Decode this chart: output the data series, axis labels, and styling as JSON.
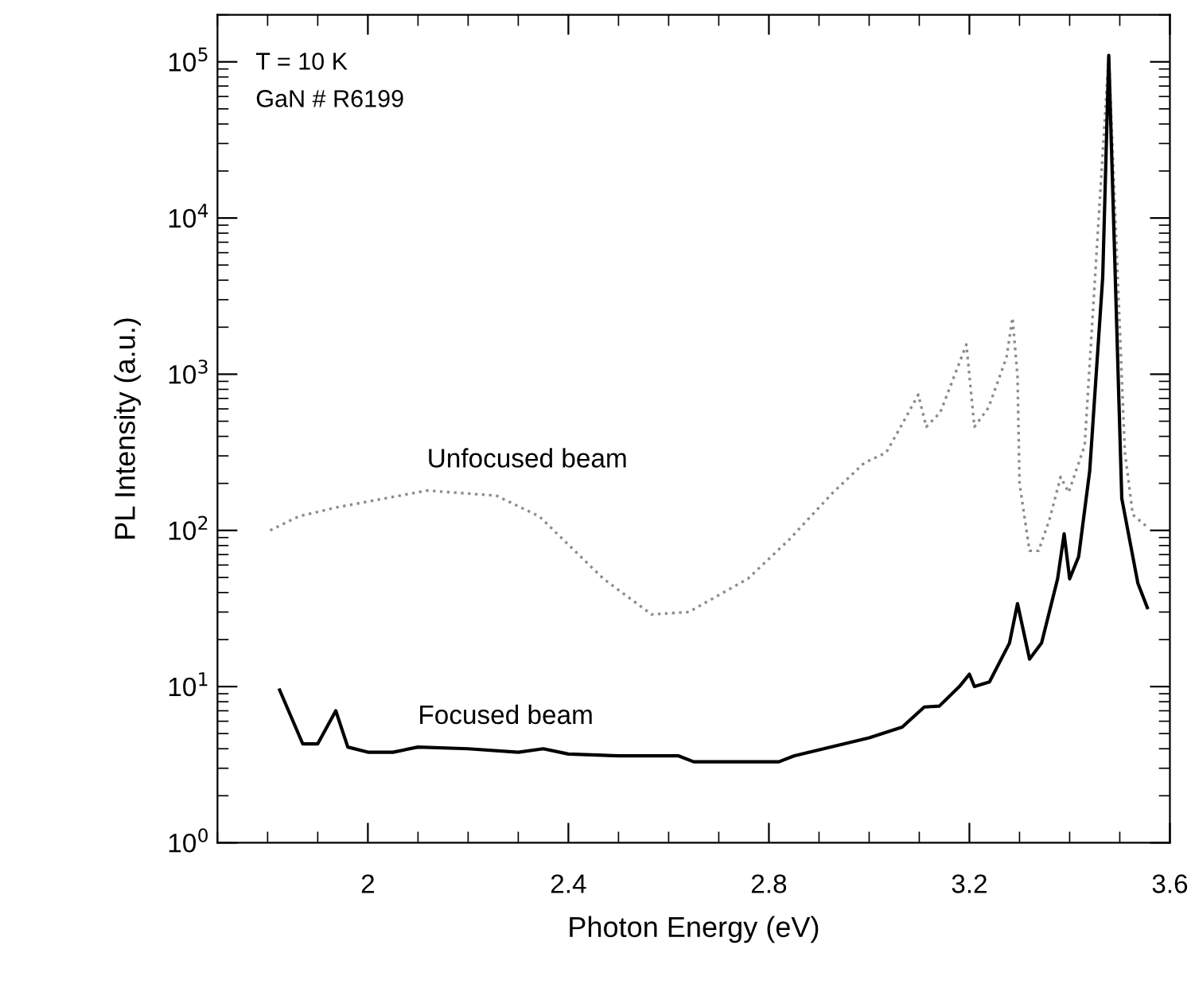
{
  "chart_data": {
    "type": "line",
    "xlabel": "Photon Energy (eV)",
    "ylabel": "PL Intensity (a.u.)",
    "log": "y",
    "grid": false,
    "legend": false,
    "xlim": [
      1.7,
      3.6
    ],
    "xticks": [
      2,
      2.4,
      2.8,
      3.2,
      3.6
    ],
    "ylim": [
      1,
      200000
    ],
    "yticks": [
      {
        "value": 1,
        "label": "10$^{0}$"
      },
      {
        "value": 10,
        "label": "10$^{1}$"
      },
      {
        "value": 100,
        "label": "10$^{2}$"
      },
      {
        "value": 1000,
        "label": "10$^{3}$"
      },
      {
        "value": 10000,
        "label": "10$^{4}$"
      },
      {
        "value": 100000,
        "label": "10$^{5}$"
      }
    ],
    "annotations": [
      "T = 10 K",
      "GaN # R6199"
    ],
    "series": [
      {
        "name": "Unfocused beam",
        "color": "#8c8c8c",
        "line_style": "dotted",
        "x": [
          1.805,
          1.862,
          1.936,
          2.118,
          2.256,
          2.342,
          2.47,
          2.566,
          2.64,
          2.758,
          2.84,
          2.928,
          2.99,
          3.034,
          3.066,
          3.098,
          3.114,
          3.142,
          3.194,
          3.21,
          3.238,
          3.274,
          3.286,
          3.296,
          3.3,
          3.32,
          3.338,
          3.36,
          3.382,
          3.398,
          3.43,
          3.478,
          3.51,
          3.526,
          3.555
        ],
        "values": [
          100,
          123,
          140,
          180,
          167,
          123,
          49,
          29,
          30,
          49,
          87,
          175,
          270,
          315,
          480,
          740,
          460,
          570,
          1550,
          460,
          610,
          1280,
          2300,
          970,
          200,
          74,
          74,
          118,
          220,
          175,
          350,
          110000,
          320,
          126,
          105
        ]
      },
      {
        "name": "Focused beam",
        "color": "#000000",
        "line_style": "solid",
        "x": [
          1.824,
          1.87,
          1.9,
          1.936,
          1.96,
          2.0,
          2.05,
          2.1,
          2.2,
          2.3,
          2.35,
          2.4,
          2.5,
          2.54,
          2.62,
          2.65,
          2.82,
          2.85,
          3.0,
          3.066,
          3.11,
          3.14,
          3.18,
          3.2,
          3.21,
          3.24,
          3.28,
          3.296,
          3.32,
          3.344,
          3.376,
          3.389,
          3.4,
          3.418,
          3.44,
          3.466,
          3.478,
          3.504,
          3.536,
          3.555
        ],
        "values": [
          9.5,
          4.3,
          4.3,
          7.0,
          4.1,
          3.8,
          3.8,
          4.1,
          4.0,
          3.8,
          4.0,
          3.7,
          3.6,
          3.6,
          3.6,
          3.3,
          3.3,
          3.6,
          4.7,
          5.5,
          7.4,
          7.5,
          10,
          12,
          10,
          10.7,
          19,
          34,
          15,
          19,
          49,
          95,
          49,
          68,
          240,
          4200,
          110000,
          160,
          46,
          32
        ]
      }
    ]
  }
}
